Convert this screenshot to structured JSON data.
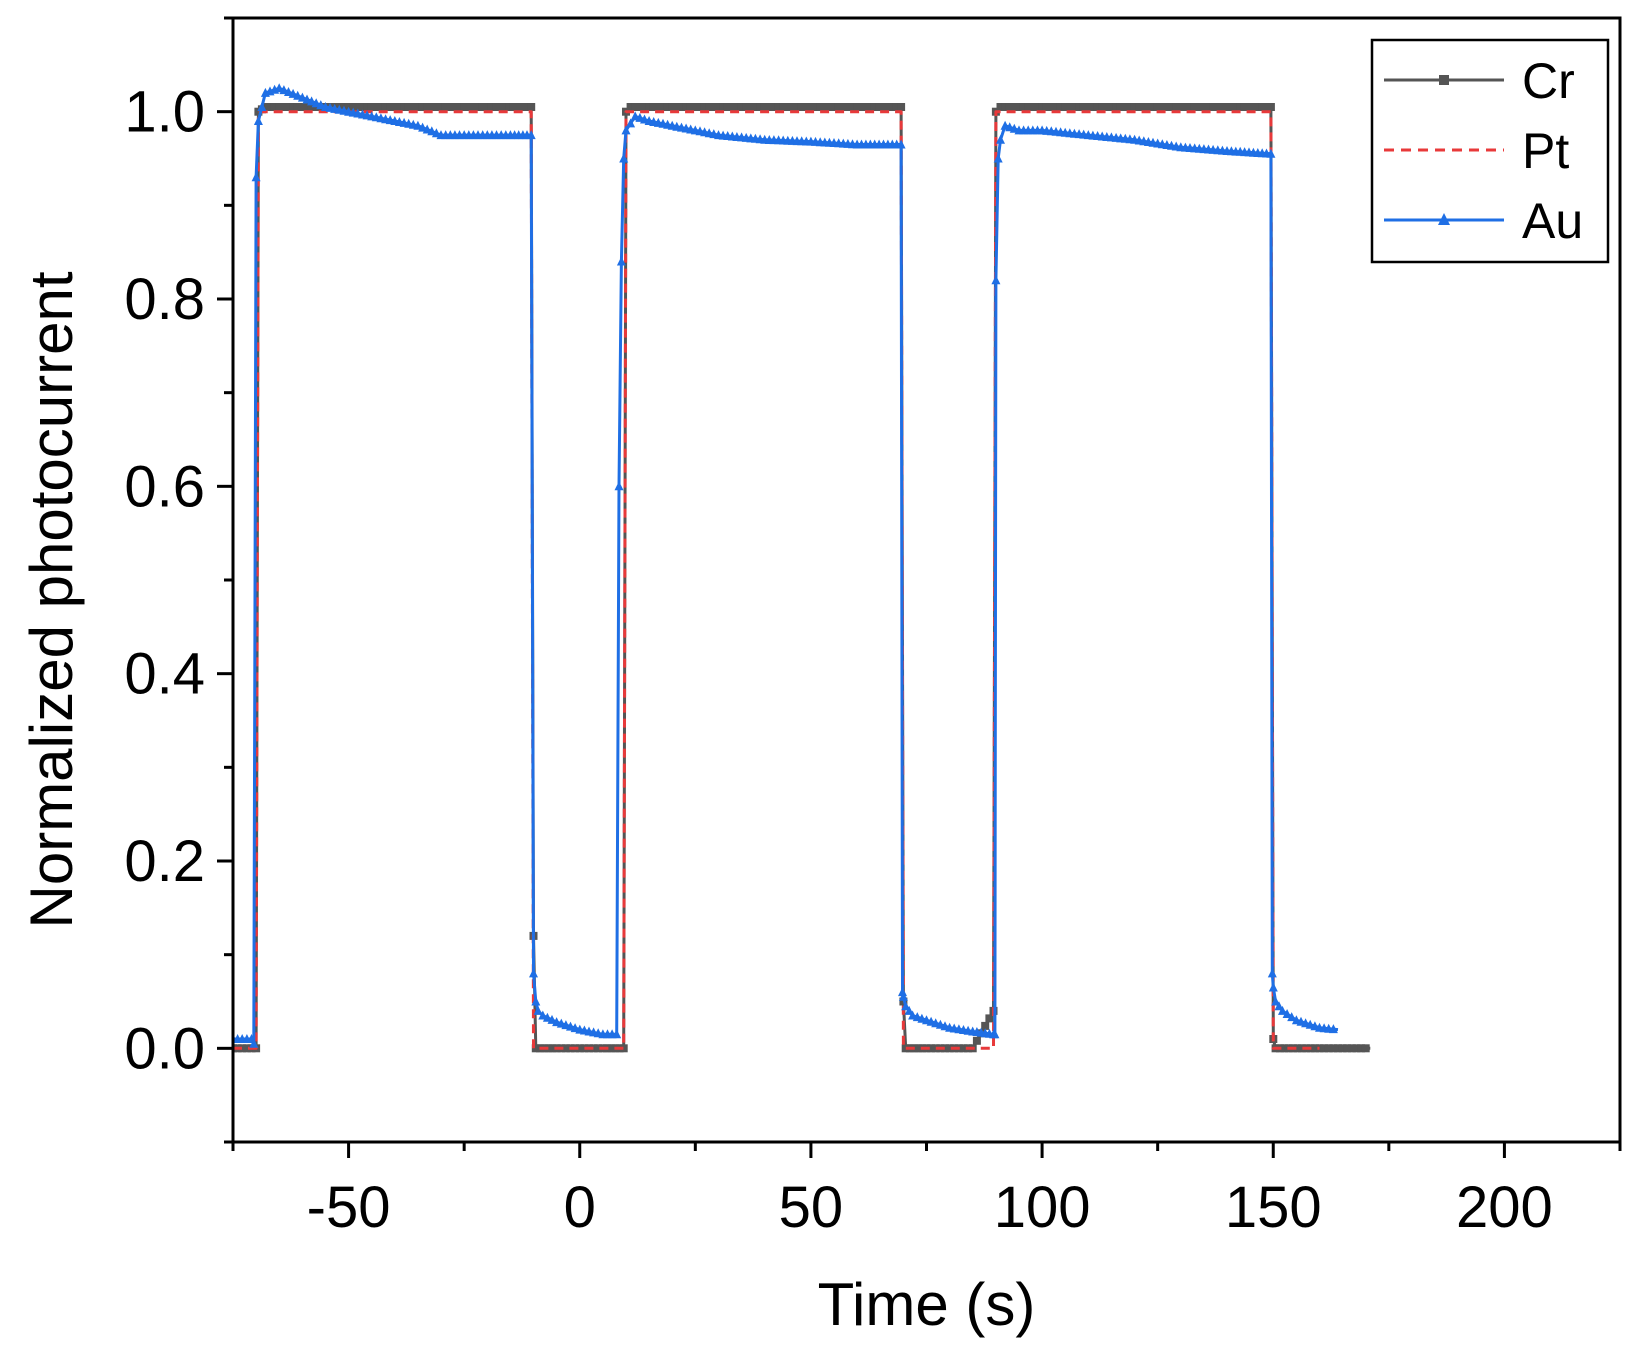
{
  "chart_data": {
    "type": "line",
    "xlabel": "Time (s)",
    "ylabel": "Normalized photocurrent",
    "xlim": [
      -75,
      225
    ],
    "ylim": [
      -0.1,
      1.1
    ],
    "xticks": [
      -50,
      0,
      50,
      100,
      150,
      200
    ],
    "xtick_labels": [
      "-50",
      "0",
      "50",
      "100",
      "150",
      "200"
    ],
    "yticks": [
      0.0,
      0.2,
      0.4,
      0.6,
      0.8,
      1.0
    ],
    "ytick_labels": [
      "0.0",
      "0.2",
      "0.4",
      "0.6",
      "0.8",
      "1.0"
    ],
    "legend_position": "top-right",
    "series": [
      {
        "name": "Cr",
        "color": "#555555",
        "style": "solid-square-markers",
        "x": [
          -75,
          -70,
          -69.5,
          -68,
          -60,
          -50,
          -40,
          -30,
          -20,
          -10.5,
          -10,
          -9.5,
          -5,
          0,
          5,
          9.5,
          10,
          11,
          20,
          30,
          40,
          50,
          60,
          69.5,
          70,
          70.5,
          75,
          80,
          85,
          89.5,
          90,
          91,
          100,
          110,
          120,
          130,
          140,
          149.5,
          150,
          150.5,
          160,
          171
        ],
        "y": [
          0.0,
          0.0,
          1.0,
          1.005,
          1.005,
          1.005,
          1.005,
          1.005,
          1.005,
          1.005,
          0.12,
          0.0,
          0.0,
          0.0,
          0.0,
          0.0,
          1.0,
          1.005,
          1.005,
          1.005,
          1.005,
          1.005,
          1.005,
          1.005,
          0.05,
          0.0,
          0.0,
          0.0,
          0.0,
          0.04,
          1.0,
          1.005,
          1.005,
          1.005,
          1.005,
          1.005,
          1.005,
          1.005,
          0.01,
          0.0,
          0.0,
          0.0
        ]
      },
      {
        "name": "Pt",
        "color": "#e8393a",
        "style": "dashed",
        "x": [
          -75,
          -70,
          -69.5,
          -60,
          -50,
          -40,
          -30,
          -20,
          -10.5,
          -10,
          -9.5,
          -5,
          0,
          5,
          9.5,
          10,
          11,
          20,
          30,
          40,
          50,
          60,
          69.5,
          70,
          70.5,
          75,
          80,
          85,
          89.5,
          90,
          91,
          100,
          110,
          120,
          130,
          140,
          149.5,
          150,
          150.5,
          155,
          160
        ],
        "y": [
          0.0,
          0.0,
          1.0,
          1.0,
          1.0,
          1.0,
          1.0,
          1.0,
          1.0,
          0.0,
          0.0,
          0.0,
          0.0,
          0.0,
          0.0,
          1.0,
          1.0,
          1.0,
          1.0,
          1.0,
          1.0,
          1.0,
          1.0,
          0.0,
          0.0,
          0.0,
          0.0,
          0.0,
          0.0,
          1.0,
          1.0,
          1.0,
          1.0,
          1.0,
          1.0,
          1.0,
          1.0,
          0.0,
          0.0,
          0.0,
          0.0
        ]
      },
      {
        "name": "Au",
        "color": "#1f6fe5",
        "style": "solid-triangle-markers",
        "x": [
          -75,
          -71,
          -70.5,
          -70,
          -69.5,
          -68,
          -65,
          -60,
          -55,
          -50,
          -45,
          -40,
          -35,
          -30,
          -25,
          -20,
          -15,
          -10.5,
          -10,
          -9.5,
          -9,
          -8,
          -5,
          0,
          5,
          8,
          8.5,
          9,
          9.5,
          10,
          12,
          15,
          20,
          25,
          30,
          40,
          50,
          60,
          69.5,
          69.8,
          70,
          70.5,
          72,
          75,
          80,
          85,
          89.5,
          89.8,
          90,
          90.5,
          91,
          92,
          95,
          100,
          110,
          120,
          130,
          140,
          149.5,
          149.8,
          150,
          150.5,
          152,
          155,
          160,
          164
        ],
        "y": [
          0.01,
          0.01,
          0.005,
          0.93,
          0.99,
          1.02,
          1.025,
          1.015,
          1.005,
          1.0,
          0.995,
          0.99,
          0.985,
          0.975,
          0.975,
          0.975,
          0.975,
          0.975,
          0.08,
          0.05,
          0.04,
          0.035,
          0.028,
          0.02,
          0.015,
          0.015,
          0.6,
          0.84,
          0.95,
          0.98,
          0.995,
          0.99,
          0.985,
          0.98,
          0.975,
          0.97,
          0.968,
          0.965,
          0.965,
          0.06,
          0.055,
          0.045,
          0.035,
          0.03,
          0.022,
          0.018,
          0.015,
          0.015,
          0.82,
          0.95,
          0.97,
          0.985,
          0.98,
          0.98,
          0.975,
          0.97,
          0.962,
          0.958,
          0.955,
          0.08,
          0.065,
          0.05,
          0.04,
          0.03,
          0.022,
          0.02
        ]
      }
    ]
  }
}
